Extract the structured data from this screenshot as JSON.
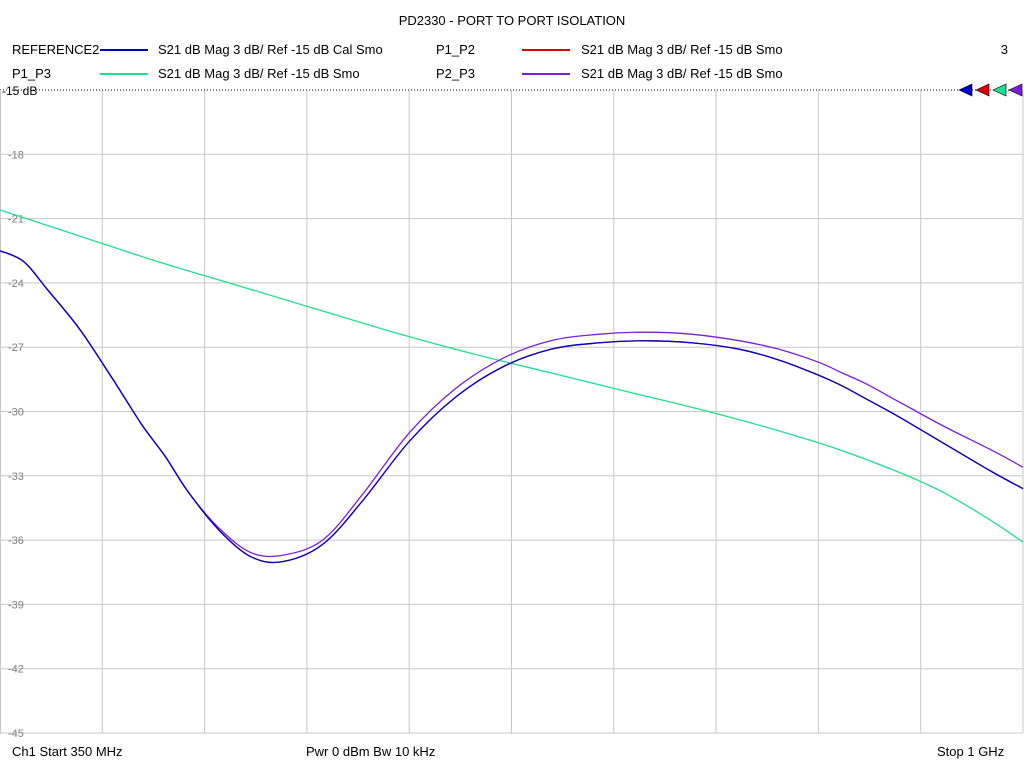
{
  "chart_data": {
    "type": "line",
    "title": "PD2330 - PORT TO PORT ISOLATION",
    "xlim": [
      350,
      1000
    ],
    "x_unit": "MHz",
    "ylim": [
      -45,
      -15
    ],
    "yticks": [
      -15,
      -18,
      -21,
      -24,
      -27,
      -30,
      -33,
      -36,
      -39,
      -42,
      -45
    ],
    "ytick_labels": [
      "-15",
      "-18",
      "-21",
      "-24",
      "-27",
      "-30",
      "-33",
      "-36",
      "-39",
      "-42",
      "-45"
    ],
    "ref_label": "-15 dB",
    "grid": true,
    "legend": [
      {
        "trace": "REFERENCE2",
        "desc": "S21  dB Mag  3 dB/ Ref -15 dB  Cal Smo",
        "color": "#0000cc"
      },
      {
        "trace": "P1_P2",
        "desc": "S21  dB Mag  3 dB/ Ref -15 dB  Smo",
        "color": "#dd0000"
      },
      {
        "trace": "P1_P3",
        "desc": "S21  dB Mag  3 dB/ Ref -15 dB  Smo",
        "color": "#20e090"
      },
      {
        "trace": "P2_P3",
        "desc": "S21  dB Mag  3 dB/ Ref -15 dB  Smo",
        "color": "#7a1fd6"
      }
    ],
    "trace_count": "3",
    "series": [
      {
        "name": "P1_P2",
        "color": "#dd0000",
        "x": [
          350,
          365,
          380,
          400,
          420,
          440,
          455,
          470,
          490,
          510,
          530,
          555,
          580,
          610,
          640,
          670,
          700,
          730,
          760,
          790,
          820,
          845,
          870,
          885,
          900,
          920,
          950,
          980,
          1000
        ],
        "y": [
          -22.5,
          -23.0,
          -24.3,
          -26.1,
          -28.3,
          -30.6,
          -32.1,
          -33.8,
          -35.6,
          -36.8,
          -37.0,
          -36.2,
          -34.2,
          -31.4,
          -29.3,
          -27.9,
          -27.1,
          -26.8,
          -26.7,
          -26.8,
          -27.1,
          -27.6,
          -28.3,
          -28.8,
          -29.4,
          -30.2,
          -31.5,
          -32.8,
          -33.6
        ]
      },
      {
        "name": "P1_P3",
        "color": "#20e090",
        "x": [
          350,
          400,
          450,
          500,
          550,
          600,
          650,
          700,
          750,
          800,
          840,
          880,
          920,
          950,
          980,
          1000
        ],
        "y": [
          -20.6,
          -21.8,
          -23.0,
          -24.1,
          -25.2,
          -26.3,
          -27.3,
          -28.2,
          -29.1,
          -30.0,
          -30.8,
          -31.7,
          -32.8,
          -33.8,
          -35.1,
          -36.1
        ]
      },
      {
        "name": "P2_P3",
        "color": "#7a1fd6",
        "x": [
          350,
          365,
          380,
          400,
          420,
          440,
          455,
          470,
          490,
          510,
          530,
          555,
          580,
          610,
          640,
          670,
          700,
          730,
          760,
          790,
          820,
          845,
          870,
          885,
          900,
          920,
          950,
          980,
          1000
        ],
        "y": [
          -22.5,
          -23.0,
          -24.3,
          -26.1,
          -28.3,
          -30.6,
          -32.1,
          -33.8,
          -35.5,
          -36.6,
          -36.7,
          -36.0,
          -33.9,
          -31.0,
          -28.9,
          -27.5,
          -26.7,
          -26.4,
          -26.3,
          -26.4,
          -26.7,
          -27.1,
          -27.7,
          -28.2,
          -28.7,
          -29.5,
          -30.7,
          -31.8,
          -32.6
        ]
      },
      {
        "name": "REFERENCE2",
        "color": "#0000cc",
        "x": [
          350,
          365,
          380,
          400,
          420,
          440,
          455,
          470,
          490,
          510,
          530,
          555,
          580,
          610,
          640,
          670,
          700,
          730,
          760,
          790,
          820,
          845,
          870,
          885,
          900,
          920,
          950,
          980,
          1000
        ],
        "y": [
          -22.5,
          -23.0,
          -24.3,
          -26.1,
          -28.3,
          -30.6,
          -32.1,
          -33.8,
          -35.6,
          -36.8,
          -37.0,
          -36.2,
          -34.2,
          -31.4,
          -29.3,
          -27.9,
          -27.1,
          -26.8,
          -26.7,
          -26.8,
          -27.1,
          -27.6,
          -28.3,
          -28.8,
          -29.4,
          -30.2,
          -31.5,
          -32.8,
          -33.6
        ]
      }
    ]
  },
  "footer": {
    "start": "Ch1  Start  350 MHz",
    "center": "Pwr  0 dBm  Bw  10 kHz",
    "stop": "Stop  1 GHz"
  }
}
